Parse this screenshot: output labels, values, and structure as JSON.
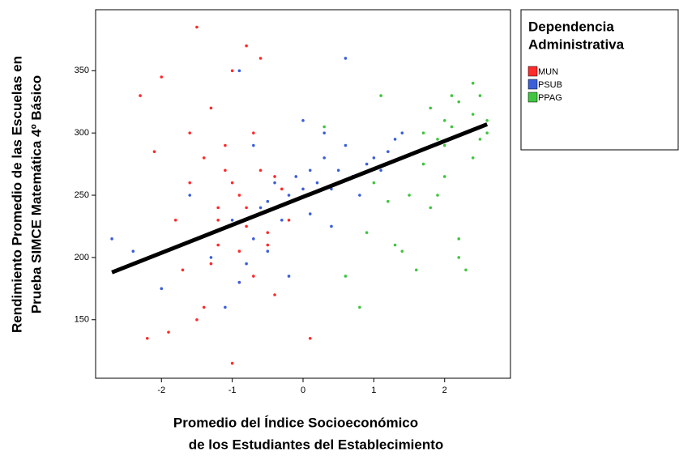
{
  "chart_data": {
    "type": "scatter",
    "y_axis_label": [
      "Rendimiento Promedio de las Escuelas en",
      "Prueba SIMCE Matemática 4º Básico"
    ],
    "x_axis_label": [
      "Promedio del Índice Socioeconómico",
      "de los Estudiantes del Establecimiento"
    ],
    "legend_title": [
      "Dependencia",
      "Administrativa"
    ],
    "legend_position": "outside-right",
    "xlim": [
      -2.93,
      2.93
    ],
    "ylim": [
      103,
      399
    ],
    "xticks": [
      -2,
      -1,
      0,
      1,
      2
    ],
    "yticks": [
      150,
      200,
      250,
      300,
      350
    ],
    "series": [
      {
        "name": "MUN",
        "color": "#ff2a2a",
        "x": [
          -2.3,
          -2.1,
          -1.9,
          -1.8,
          -1.6,
          -1.5,
          -1.4,
          -1.3,
          -1.2,
          -1.1,
          -1.0,
          -0.9,
          -0.8,
          -0.7,
          -0.6,
          -0.5,
          -0.4,
          -0.3,
          -1.7,
          -1.4,
          -1.2,
          -1.0,
          -0.9,
          -0.8,
          -0.7,
          -1.1,
          -1.3,
          -0.6,
          -0.2,
          0.1,
          -2.0,
          -1.5,
          -0.9,
          -1.0,
          -0.5,
          -1.2,
          -0.8,
          -2.2,
          -1.6,
          -0.4
        ],
        "values": [
          330,
          285,
          140,
          230,
          260,
          385,
          280,
          195,
          240,
          270,
          115,
          250,
          225,
          300,
          270,
          220,
          265,
          255,
          190,
          160,
          210,
          350,
          205,
          240,
          185,
          290,
          320,
          360,
          230,
          135,
          345,
          150,
          180,
          260,
          210,
          230,
          370,
          135,
          300,
          170
        ]
      },
      {
        "name": "PSUB",
        "color": "#3a5fd9",
        "x": [
          -2.7,
          -2.4,
          -2.0,
          -1.6,
          -1.3,
          -1.0,
          -0.9,
          -0.7,
          -0.6,
          -0.5,
          -0.4,
          -0.3,
          -0.2,
          -0.1,
          0.0,
          0.1,
          0.2,
          0.3,
          0.4,
          0.5,
          0.6,
          0.7,
          0.8,
          0.9,
          1.0,
          1.1,
          1.2,
          1.3,
          1.4,
          -0.8,
          -0.5,
          -0.2,
          0.1,
          0.3,
          0.6,
          -1.1,
          -0.7,
          0.0,
          -0.9,
          0.4
        ],
        "values": [
          215,
          205,
          175,
          250,
          200,
          230,
          350,
          215,
          240,
          245,
          260,
          230,
          250,
          265,
          255,
          270,
          260,
          280,
          255,
          270,
          290,
          265,
          250,
          275,
          280,
          270,
          285,
          295,
          300,
          195,
          205,
          185,
          235,
          300,
          360,
          160,
          290,
          310,
          180,
          225
        ]
      },
      {
        "name": "PPAG",
        "color": "#3fc53f",
        "x": [
          0.3,
          0.6,
          0.9,
          1.1,
          1.3,
          1.5,
          1.6,
          1.7,
          1.8,
          1.9,
          2.0,
          2.1,
          2.2,
          2.3,
          2.4,
          2.5,
          2.6,
          1.6,
          1.8,
          2.0,
          2.2,
          2.4,
          2.5,
          1.2,
          1.4,
          2.1,
          2.3,
          0.8,
          1.0,
          2.2,
          1.9,
          2.4,
          2.6,
          1.7,
          2.0
        ],
        "values": [
          305,
          185,
          220,
          330,
          210,
          250,
          285,
          300,
          320,
          295,
          310,
          305,
          325,
          300,
          315,
          330,
          310,
          190,
          240,
          265,
          200,
          280,
          295,
          245,
          205,
          330,
          190,
          160,
          260,
          215,
          250,
          340,
          300,
          275,
          290
        ]
      }
    ],
    "trend_line": {
      "color": "#000000",
      "x": [
        -2.7,
        2.6
      ],
      "values": [
        188,
        307
      ]
    }
  }
}
